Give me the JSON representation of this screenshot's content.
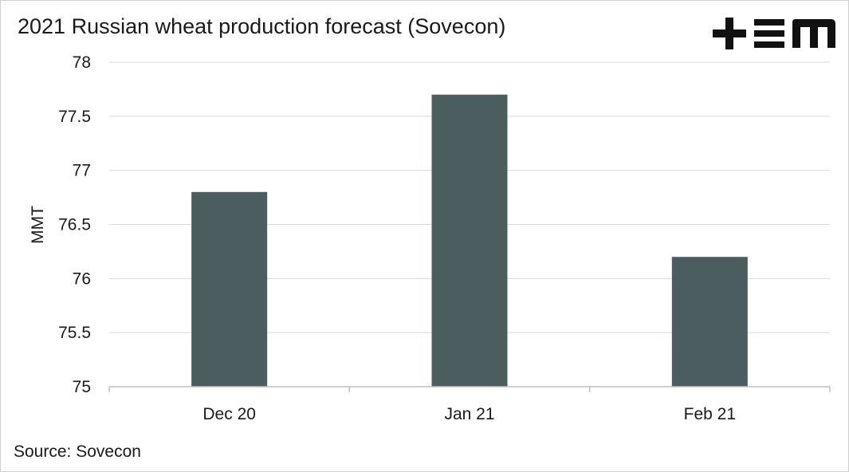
{
  "title": "2021 Russian wheat production forecast (Sovecon)",
  "source": "Source: Sovecon",
  "logo": {
    "text": "+EM",
    "icon": "tem-logo"
  },
  "colors": {
    "bar": "#4b5d5e",
    "grid": "#d9d9d9",
    "axis": "#bfbfbf",
    "text": "#1a1a1a"
  },
  "chart_data": {
    "type": "bar",
    "categories": [
      "Dec 20",
      "Jan 21",
      "Feb 21"
    ],
    "values": [
      76.8,
      77.7,
      76.2
    ],
    "ylabel": "MMT",
    "xlabel": "",
    "ylim": [
      75,
      78
    ],
    "yticks": [
      75,
      75.5,
      76,
      76.5,
      77,
      77.5,
      78
    ],
    "ytick_labels": [
      "75",
      "75.5",
      "76",
      "76.5",
      "77",
      "77.5",
      "78"
    ],
    "grid": true,
    "legend": "none"
  }
}
